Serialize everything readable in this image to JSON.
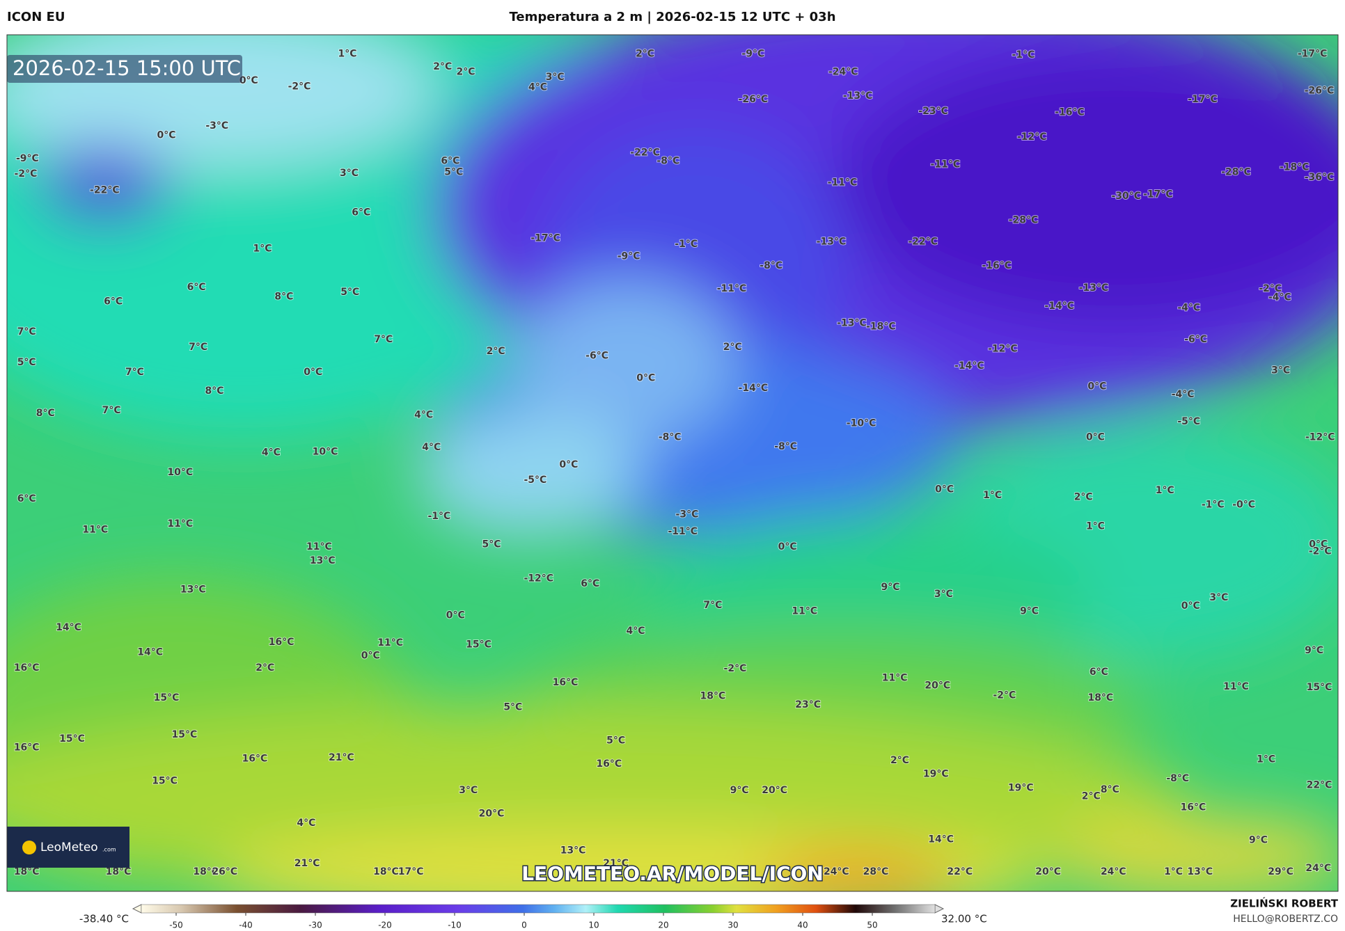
{
  "header": {
    "model": "ICON EU",
    "title": "Temperatura a 2 m | 2026-02-15 12 UTC + 03h"
  },
  "map": {
    "valid_time": "2026-02-15 15:00 UTC",
    "watermark": "LEOMETEO.AR/MODEL/ICON",
    "logo": {
      "name": "LeoMeteo",
      "suffix": ".com"
    },
    "labels": [
      "1°C",
      "2°C",
      "2°C",
      "3°C",
      "4°C",
      "2°C",
      "-9°C",
      "-1°C",
      "-17°C",
      "0°C",
      "-2°C",
      "-24°C",
      "-13°C",
      "-26°C",
      "-23°C",
      "-16°C",
      "-17°C",
      "-26°C",
      "-3°C",
      "0°C",
      "-12°C",
      "-22°C",
      "3°C",
      "6°C",
      "5°C",
      "-22°C",
      "-8°C",
      "-11°C",
      "-11°C",
      "-28°C",
      "-18°C",
      "-36°C",
      "-30°C",
      "-17°C",
      "6°C",
      "-28°C",
      "-17°C",
      "-1°C",
      "-13°C",
      "-22°C",
      "1°C",
      "-9°C",
      "-8°C",
      "-16°C",
      "6°C",
      "6°C",
      "8°C",
      "5°C",
      "-11°C",
      "-13°C",
      "-2°C",
      "-4°C",
      "-14°C",
      "-4°C",
      "7°C",
      "7°C",
      "-13°C",
      "-18°C",
      "-6°C",
      "5°C",
      "7°C",
      "2°C",
      "-6°C",
      "2°C",
      "-12°C",
      "7°C",
      "0°C",
      "0°C",
      "-14°C",
      "3°C",
      "8°C",
      "-14°C",
      "0°C",
      "-4°C",
      "8°C",
      "7°C",
      "4°C",
      "-10°C",
      "-5°C",
      "4°C",
      "10°C",
      "4°C",
      "-8°C",
      "-8°C",
      "0°C",
      "-12°C",
      "10°C",
      "0°C",
      "-5°C",
      "6°C",
      "0°C",
      "1°C",
      "2°C",
      "1°C",
      "-1°C",
      "-0°C",
      "11°C",
      "11°C",
      "-1°C",
      "1°C",
      "-3°C",
      "-11°C",
      "11°C",
      "13°C",
      "5°C",
      "0°C",
      "0°C",
      "-2°C",
      "-12°C",
      "6°C",
      "13°C",
      "9°C",
      "3°C",
      "3°C",
      "7°C",
      "11°C",
      "9°C",
      "0°C",
      "0°C",
      "14°C",
      "4°C",
      "16°C",
      "11°C",
      "15°C",
      "14°C",
      "0°C",
      "9°C",
      "16°C",
      "2°C",
      "-2°C",
      "6°C",
      "11°C",
      "16°C",
      "20°C",
      "11°C",
      "15°C",
      "15°C",
      "18°C",
      "-2°C",
      "18°C",
      "23°C",
      "5°C",
      "15°C",
      "15°C",
      "5°C",
      "16°C",
      "16°C",
      "21°C",
      "16°C",
      "2°C",
      "1°C",
      "19°C",
      "-8°C",
      "15°C",
      "3°C",
      "9°C",
      "20°C",
      "19°C",
      "8°C",
      "2°C",
      "22°C",
      "20°C",
      "16°C",
      "4°C",
      "14°C",
      "9°C",
      "13°C",
      "21°C",
      "21°C",
      "18°C",
      "18°C",
      "18°C",
      "26°C",
      "18°C",
      "17°C",
      "24°C",
      "28°C",
      "22°C",
      "20°C",
      "24°C",
      "1°C",
      "13°C",
      "29°C",
      "24°C",
      "-9°C",
      "-2°C"
    ]
  },
  "colorbar": {
    "min_label": "-38.40 °C",
    "max_label": "32.00 °C",
    "lim": [
      -55,
      59
    ],
    "ticks": [
      -50,
      -40,
      -30,
      -20,
      -10,
      0,
      10,
      20,
      30,
      40,
      50
    ]
  },
  "credit": {
    "author": "ZIELIŃSKI ROBERT",
    "contact": "HELLO@ROBERTZ.CO"
  }
}
